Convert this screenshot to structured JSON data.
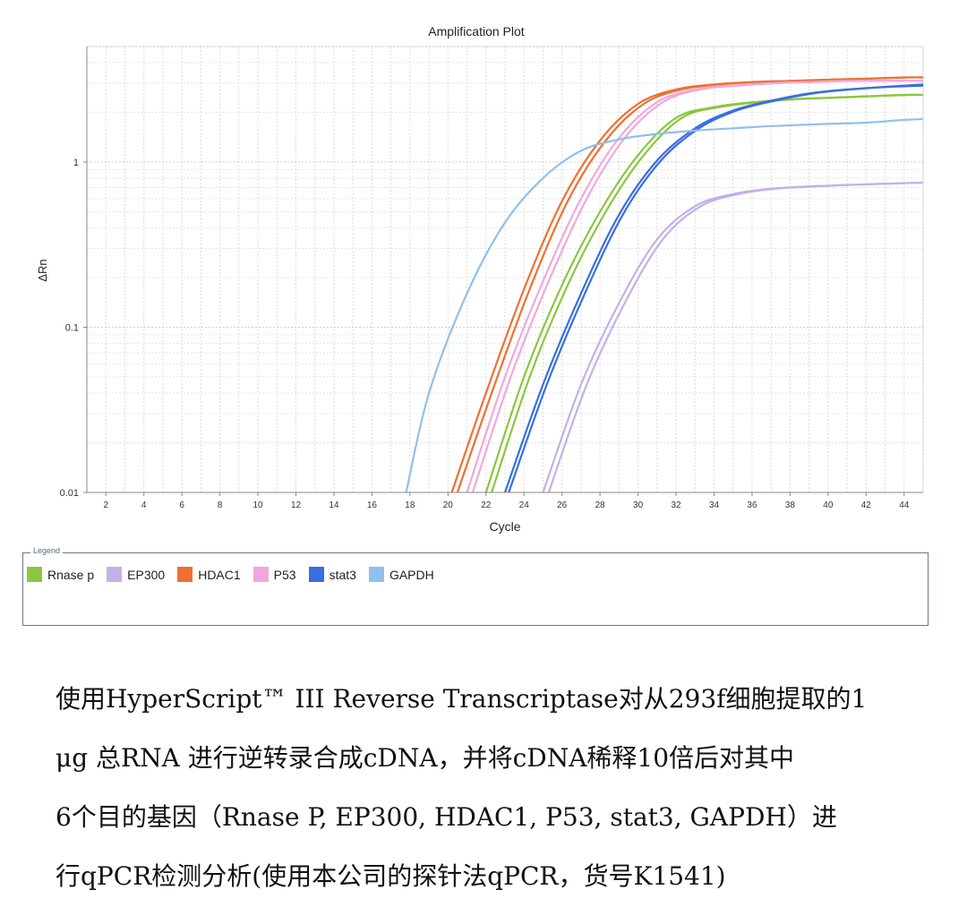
{
  "chart_data": {
    "type": "line",
    "title": "Amplification Plot",
    "xlabel": "Cycle",
    "ylabel": "ΔRn",
    "yscale": "log",
    "xlim": [
      1,
      45
    ],
    "ylim": [
      0.01,
      5
    ],
    "x_ticks": [
      2,
      4,
      6,
      8,
      10,
      12,
      14,
      16,
      18,
      20,
      22,
      24,
      26,
      28,
      30,
      32,
      34,
      36,
      38,
      40,
      42,
      44
    ],
    "y_ticks": [
      {
        "value": 0.01,
        "label": "0.01"
      },
      {
        "value": 0.1,
        "label": "0.1"
      },
      {
        "value": 1,
        "label": "1"
      }
    ],
    "grid": true,
    "legend_title": "Legend",
    "legend_position": "bottom",
    "series": [
      {
        "name": "Rnase p",
        "color": "#8cc63f",
        "replicates": [
          {
            "x": [
              22,
              24,
              26,
              28,
              30,
              32,
              34,
              36,
              38,
              40,
              42,
              44,
              45
            ],
            "y": [
              0.01,
              0.05,
              0.18,
              0.5,
              1.1,
              1.85,
              2.15,
              2.3,
              2.4,
              2.45,
              2.5,
              2.55,
              2.55
            ]
          },
          {
            "x": [
              22.3,
              24.3,
              26.3,
              28.3,
              30.3,
              32.3,
              34.3,
              36.3,
              38.3,
              40.3,
              42.3,
              44.3,
              45
            ],
            "y": [
              0.01,
              0.05,
              0.18,
              0.5,
              1.1,
              1.85,
              2.15,
              2.3,
              2.4,
              2.45,
              2.5,
              2.55,
              2.55
            ]
          }
        ]
      },
      {
        "name": "EP300",
        "color": "#c4b0e8",
        "replicates": [
          {
            "x": [
              25,
              27,
              29,
              31,
              33,
              35,
              37,
              40,
              43,
              45
            ],
            "y": [
              0.01,
              0.045,
              0.14,
              0.34,
              0.54,
              0.64,
              0.69,
              0.72,
              0.74,
              0.75
            ]
          },
          {
            "x": [
              25.3,
              27.3,
              29.3,
              31.3,
              33.3,
              35.3,
              37.3,
              40.3,
              43.3,
              45
            ],
            "y": [
              0.01,
              0.045,
              0.14,
              0.34,
              0.54,
              0.64,
              0.69,
              0.72,
              0.74,
              0.75
            ]
          }
        ]
      },
      {
        "name": "HDAC1",
        "color": "#f07030",
        "replicates": [
          {
            "x": [
              20.2,
              22,
              24,
              26,
              28,
              30,
              32,
              34,
              36,
              38,
              40,
              42,
              44,
              45
            ],
            "y": [
              0.01,
              0.04,
              0.17,
              0.58,
              1.35,
              2.25,
              2.75,
              2.95,
              3.05,
              3.1,
              3.15,
              3.2,
              3.25,
              3.25
            ]
          },
          {
            "x": [
              20.5,
              22.3,
              24.3,
              26.3,
              28.3,
              30.3,
              32.3,
              34.3,
              36.3,
              38.3,
              40.3,
              42.3,
              44.3,
              45
            ],
            "y": [
              0.01,
              0.04,
              0.17,
              0.58,
              1.35,
              2.25,
              2.75,
              2.95,
              3.05,
              3.1,
              3.15,
              3.2,
              3.25,
              3.25
            ]
          }
        ]
      },
      {
        "name": "P53",
        "color": "#f0a8dc",
        "replicates": [
          {
            "x": [
              21,
              23,
              25,
              27,
              29,
              31,
              33,
              35,
              37,
              39,
              41,
              43,
              45
            ],
            "y": [
              0.01,
              0.05,
              0.19,
              0.6,
              1.4,
              2.3,
              2.75,
              2.9,
              3.0,
              3.05,
              3.1,
              3.1,
              3.1
            ]
          },
          {
            "x": [
              21.3,
              23.3,
              25.3,
              27.3,
              29.3,
              31.3,
              33.3,
              35.3,
              37.3,
              39.3,
              41.3,
              43.3,
              45
            ],
            "y": [
              0.01,
              0.05,
              0.19,
              0.6,
              1.4,
              2.3,
              2.75,
              2.9,
              3.0,
              3.05,
              3.1,
              3.1,
              3.1
            ]
          }
        ]
      },
      {
        "name": "stat3",
        "color": "#3a6ee0",
        "replicates": [
          {
            "x": [
              23,
              25,
              27,
              29,
              31,
              33,
              35,
              37,
              39,
              41,
              43,
              45
            ],
            "y": [
              0.01,
              0.045,
              0.16,
              0.48,
              1.02,
              1.6,
              2.05,
              2.35,
              2.6,
              2.75,
              2.85,
              2.95
            ]
          },
          {
            "x": [
              23.2,
              25.2,
              27.2,
              29.2,
              31.2,
              33.2,
              35.2,
              37.2,
              39.2,
              41.2,
              43.2,
              45
            ],
            "y": [
              0.01,
              0.045,
              0.16,
              0.48,
              1.02,
              1.6,
              2.05,
              2.35,
              2.6,
              2.75,
              2.85,
              2.9
            ]
          }
        ]
      },
      {
        "name": "GAPDH",
        "color": "#90c0ec",
        "replicates": [
          {
            "x": [
              17.8,
              19,
              21,
              23,
              25,
              27,
              29,
              31,
              33,
              35,
              37,
              40,
              42,
              44,
              45
            ],
            "y": [
              0.01,
              0.04,
              0.16,
              0.43,
              0.8,
              1.17,
              1.37,
              1.48,
              1.55,
              1.6,
              1.65,
              1.7,
              1.73,
              1.8,
              1.82
            ]
          }
        ]
      }
    ]
  },
  "caption": {
    "lines": [
      "使用HyperScript™ III Reverse Transcriptase对从293f细胞提取的1",
      "μg 总RNA 进行逆转录合成cDNA，并将cDNA稀释10倍后对其中",
      "6个目的基因（Rnase P, EP300, HDAC1, P53, stat3, GAPDH）进",
      "行qPCR检测分析(使用本公司的探针法qPCR，货号K1541)"
    ]
  }
}
